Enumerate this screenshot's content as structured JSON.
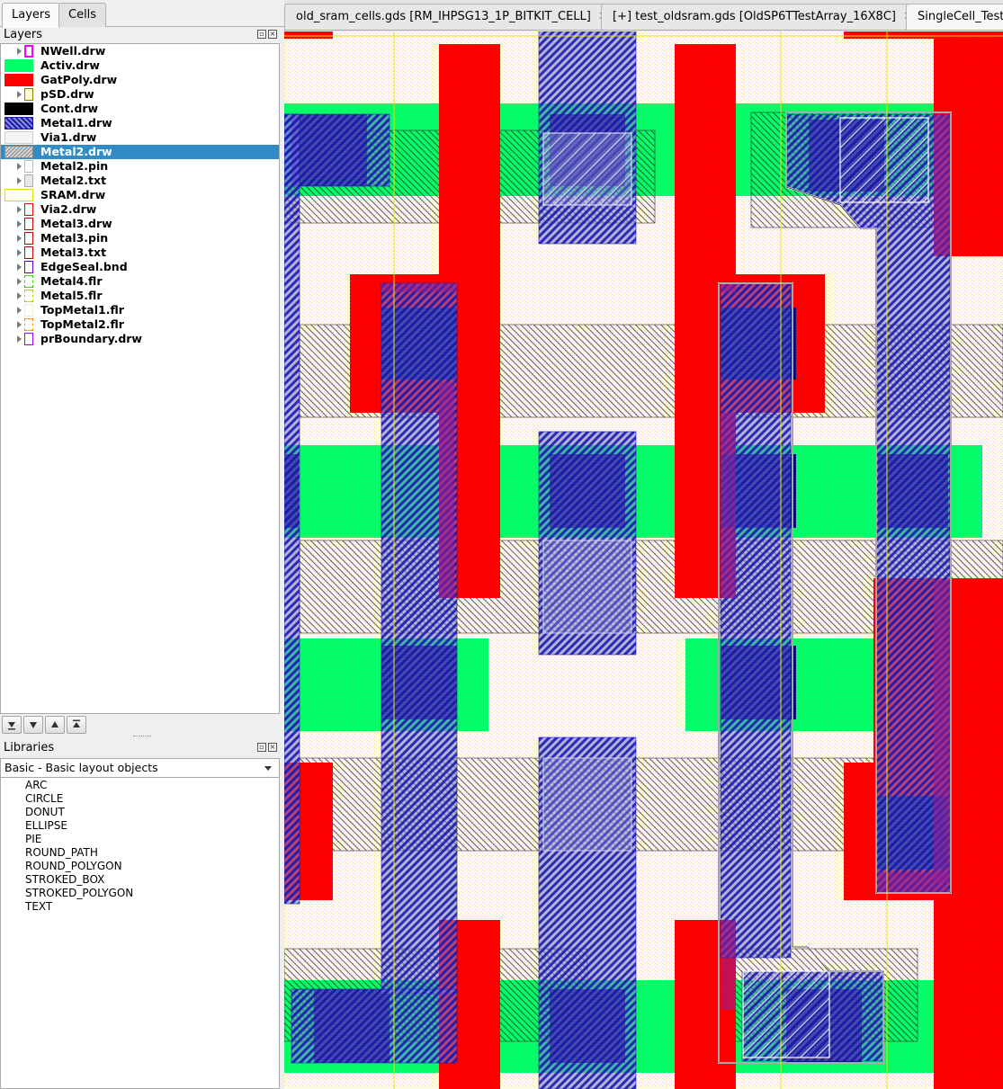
{
  "dock": {
    "tabs": [
      {
        "label": "Layers",
        "active": true
      },
      {
        "label": "Cells",
        "active": false
      }
    ],
    "layers_title": "Layers",
    "libraries_title": "Libraries"
  },
  "layers": [
    {
      "name": "NWell.drw",
      "swatch": "nwell",
      "arrow": true
    },
    {
      "name": "Activ.drw",
      "swatch": "activ",
      "arrow": false
    },
    {
      "name": "GatPoly.drw",
      "swatch": "gatpoly",
      "arrow": false
    },
    {
      "name": "pSD.drw",
      "swatch": "psd",
      "arrow": true
    },
    {
      "name": "Cont.drw",
      "swatch": "cont",
      "arrow": false
    },
    {
      "name": "Metal1.drw",
      "swatch": "metal1",
      "arrow": false
    },
    {
      "name": "Via1.drw",
      "swatch": "via1",
      "arrow": false
    },
    {
      "name": "Metal2.drw",
      "swatch": "metal2",
      "arrow": false,
      "selected": true
    },
    {
      "name": "Metal2.pin",
      "swatch": "metal2pin",
      "arrow": true
    },
    {
      "name": "Metal2.txt",
      "swatch": "metal2txt",
      "arrow": true
    },
    {
      "name": "SRAM.drw",
      "swatch": "sram",
      "arrow": false
    },
    {
      "name": "Via2.drw",
      "swatch": "via2",
      "arrow": true
    },
    {
      "name": "Metal3.drw",
      "swatch": "metal3",
      "arrow": true
    },
    {
      "name": "Metal3.pin",
      "swatch": "metal3",
      "arrow": true
    },
    {
      "name": "Metal3.txt",
      "swatch": "metal3",
      "arrow": true
    },
    {
      "name": "EdgeSeal.bnd",
      "swatch": "edgeseal",
      "arrow": true
    },
    {
      "name": "Metal4.flr",
      "swatch": "metal4",
      "arrow": true
    },
    {
      "name": "Metal5.flr",
      "swatch": "metal5",
      "arrow": true
    },
    {
      "name": "TopMetal1.flr",
      "swatch": "topmetal1",
      "arrow": true
    },
    {
      "name": "TopMetal2.flr",
      "swatch": "topmetal2",
      "arrow": true
    },
    {
      "name": "prBoundary.drw",
      "swatch": "prboundary",
      "arrow": true
    }
  ],
  "library": {
    "selected": "Basic - Basic layout objects",
    "items": [
      "ARC",
      "CIRCLE",
      "DONUT",
      "ELLIPSE",
      "PIE",
      "ROUND_PATH",
      "ROUND_POLYGON",
      "STROKED_BOX",
      "STROKED_POLYGON",
      "TEXT"
    ]
  },
  "editor_tabs": [
    {
      "label": "old_sram_cells.gds [RM_IHPSG13_1P_BITKIT_CELL]",
      "active": false,
      "closable": true
    },
    {
      "label": "[+] test_oldsram.gds [OldSP6TTestArray_16X8C]",
      "active": false,
      "closable": true
    },
    {
      "label": "SingleCell_TestS",
      "active": true,
      "closable": false
    }
  ],
  "colors": {
    "activ": "#00ff66",
    "gatpoly": "#ff0000",
    "metal1": "#1b1bb0",
    "metal2": "#b0b0b0",
    "selection": "#308cc6",
    "canvas_bg": "#fffbef",
    "cont": "#000000",
    "sram_lines": "#ffee00"
  }
}
